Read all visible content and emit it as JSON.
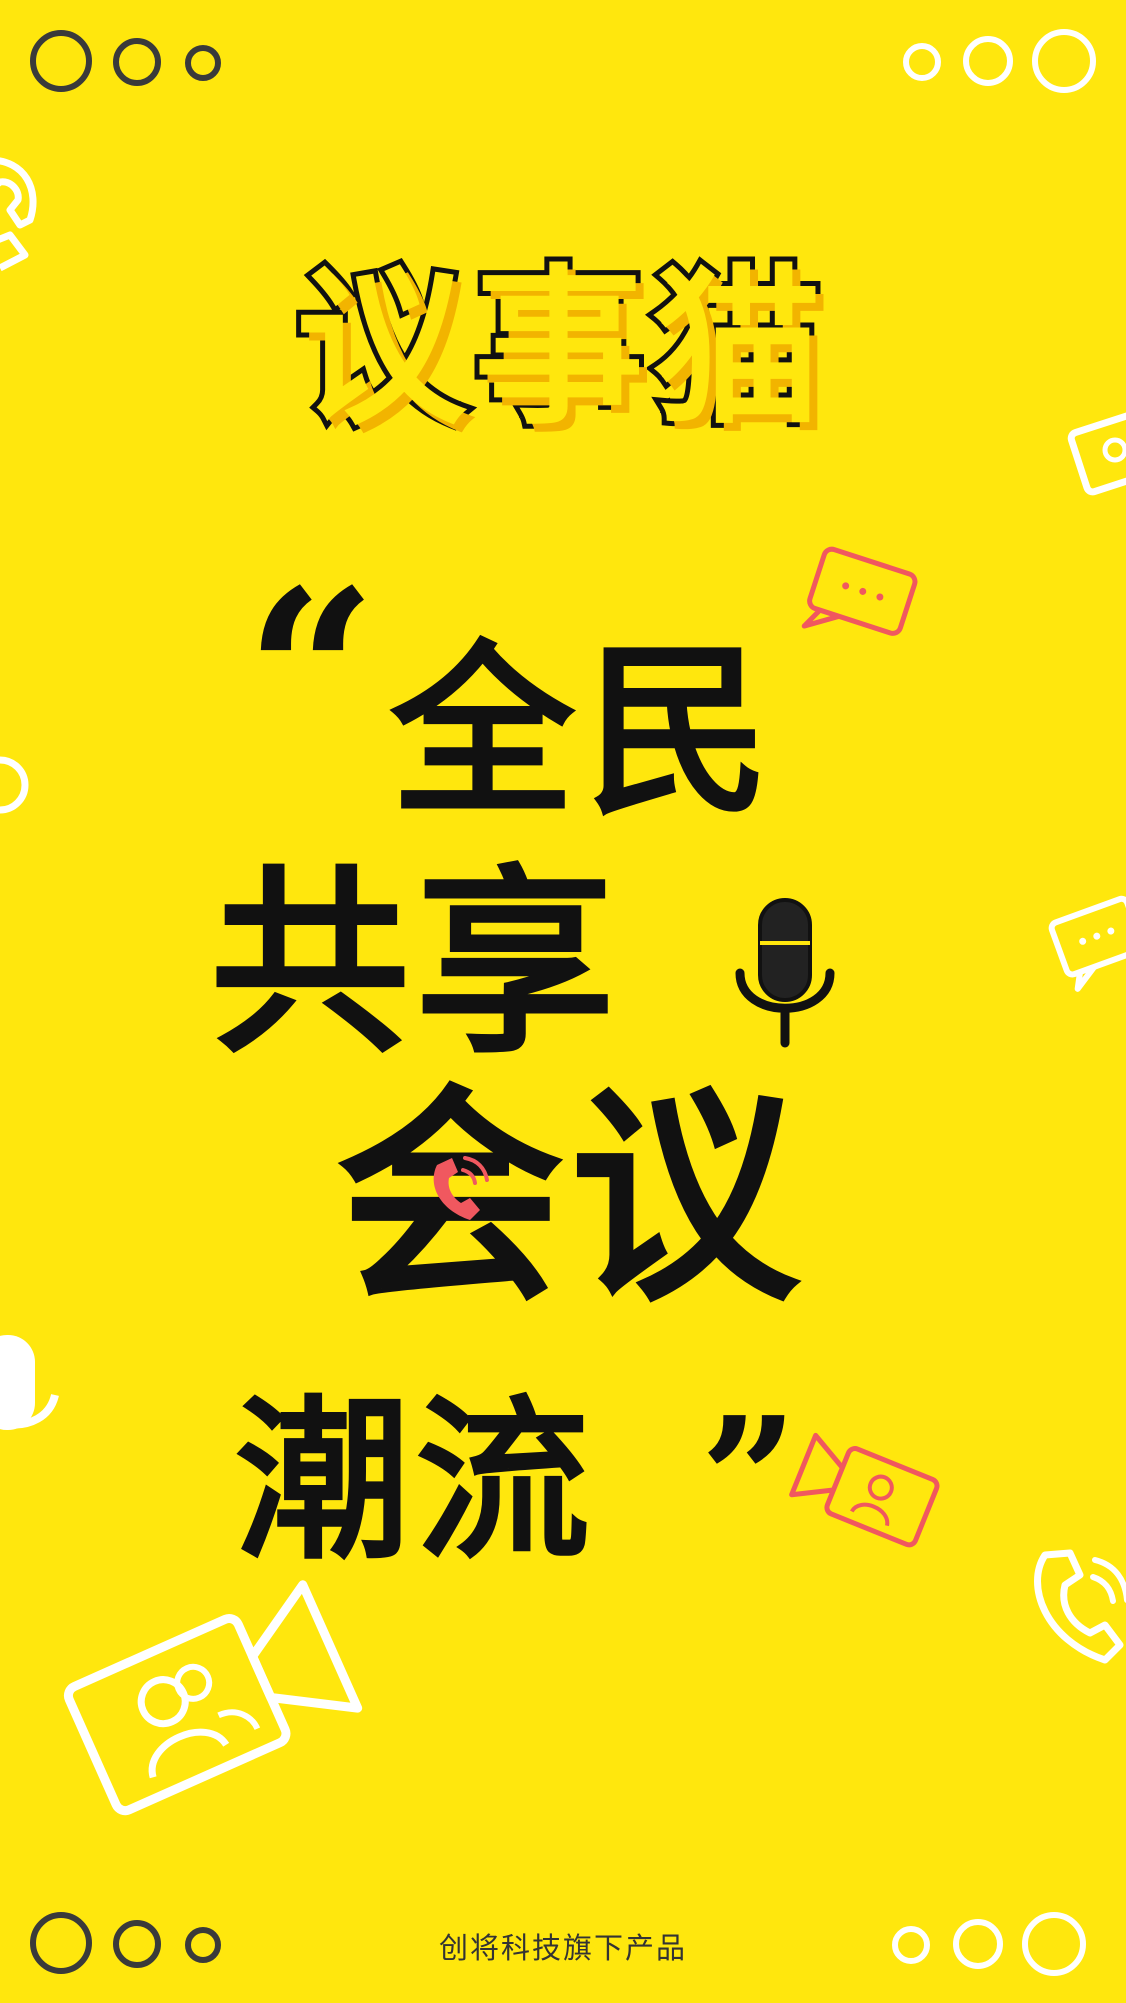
{
  "brand": {
    "logo_text": "议事猫"
  },
  "slogan": {
    "open_quote": "“",
    "line1": "全民",
    "line2": "共享",
    "line3": "会议",
    "line4": "潮流",
    "close_quote": "”"
  },
  "footer": {
    "text": "创将科技旗下产品"
  },
  "colors": {
    "background": "#FFE70D",
    "text": "#111111",
    "accent_red": "#F0585F",
    "white": "#FFFFFF",
    "ring_dark": "#3A3A3A"
  },
  "icons": [
    "phone-icon",
    "video-camera-icon",
    "chat-bubble-icon",
    "microphone-icon",
    "dot-ring-icon"
  ]
}
